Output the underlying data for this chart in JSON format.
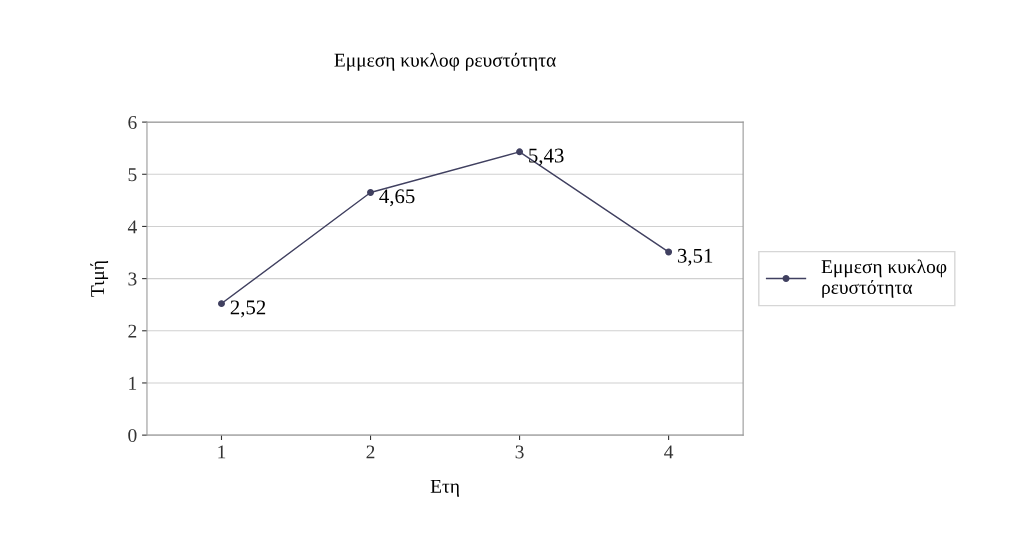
{
  "chart_data": {
    "type": "line",
    "title": "Εμμεση κυκλοφ ρευστότητα",
    "xlabel": "Ετη",
    "ylabel": "Τιμή",
    "categories": [
      "1",
      "2",
      "3",
      "4"
    ],
    "series": [
      {
        "name": "Εμμεση κυκλοφ\nρευστότητα",
        "color": "#404060",
        "values": [
          2.52,
          4.65,
          5.43,
          3.51
        ],
        "value_labels": [
          "2,52",
          "4,65",
          "5,43",
          "3,51"
        ]
      }
    ],
    "ylim": [
      0,
      6
    ],
    "yticks": [
      0,
      1,
      2,
      3,
      4,
      5,
      6
    ],
    "grid": "y",
    "legend": "right",
    "marker": "circle",
    "line_style": "solid"
  }
}
